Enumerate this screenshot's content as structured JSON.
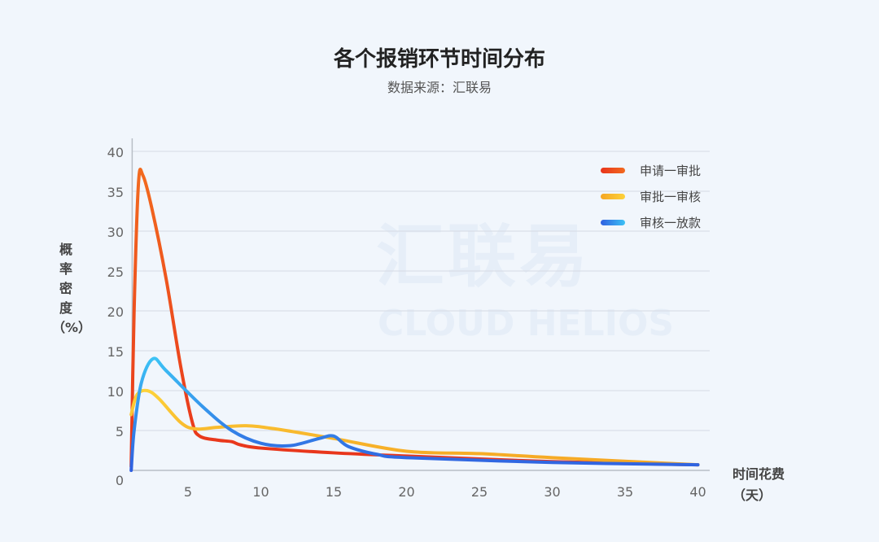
{
  "watermark": {
    "cn": "汇联易",
    "en": "CLOUD HELIOS"
  },
  "chart_data": {
    "type": "line",
    "title": "各个报销环节时间分布",
    "subtitle": "数据来源：汇联易",
    "ylabel": "概率密度（%）",
    "ylabel_chars": [
      "概",
      "率",
      "密",
      "度",
      "（%）"
    ],
    "xlabel": "时间花费",
    "xlabel_unit": "（天）",
    "xlim": [
      1,
      41
    ],
    "ylim": [
      0,
      40
    ],
    "xticks": [
      5,
      10,
      15,
      20,
      25,
      30,
      35,
      40
    ],
    "yticks": [
      0,
      5,
      10,
      15,
      20,
      25,
      30,
      35,
      40
    ],
    "grid": true,
    "legend_position": "top-right",
    "series": [
      {
        "name": "申请一审批",
        "colors": [
          "#e8341c",
          "#f26a1f"
        ],
        "points": [
          [
            1.1,
            0.5
          ],
          [
            1.3,
            20
          ],
          [
            1.6,
            36
          ],
          [
            1.9,
            37
          ],
          [
            2.5,
            33
          ],
          [
            3.5,
            24
          ],
          [
            4.5,
            13
          ],
          [
            5.3,
            6
          ],
          [
            5.8,
            4.3
          ],
          [
            7,
            3.8
          ],
          [
            8,
            3.6
          ],
          [
            8.6,
            3.2
          ],
          [
            10,
            2.8
          ],
          [
            15,
            2.2
          ],
          [
            20,
            1.8
          ],
          [
            30,
            1.1
          ],
          [
            40,
            0.7
          ]
        ]
      },
      {
        "name": "审批一审核",
        "colors": [
          "#f5a623",
          "#fdd23a"
        ],
        "points": [
          [
            1.1,
            7
          ],
          [
            1.5,
            9.5
          ],
          [
            2.2,
            10
          ],
          [
            3,
            9
          ],
          [
            4.5,
            6
          ],
          [
            5.5,
            5.2
          ],
          [
            7,
            5.4
          ],
          [
            9,
            5.6
          ],
          [
            11,
            5.2
          ],
          [
            15,
            4
          ],
          [
            20,
            2.4
          ],
          [
            25,
            2.1
          ],
          [
            30,
            1.6
          ],
          [
            40,
            0.7
          ]
        ]
      },
      {
        "name": "审核一放款",
        "colors": [
          "#2f5fe0",
          "#3cc2f5"
        ],
        "points": [
          [
            1.1,
            0
          ],
          [
            1.3,
            5
          ],
          [
            1.8,
            11
          ],
          [
            2.6,
            14
          ],
          [
            3.5,
            12.5
          ],
          [
            6,
            8
          ],
          [
            8,
            5
          ],
          [
            10,
            3.4
          ],
          [
            12,
            3.1
          ],
          [
            14,
            4
          ],
          [
            15,
            4.3
          ],
          [
            16,
            3
          ],
          [
            18,
            2
          ],
          [
            20,
            1.6
          ],
          [
            30,
            1
          ],
          [
            40,
            0.7
          ]
        ]
      }
    ]
  }
}
